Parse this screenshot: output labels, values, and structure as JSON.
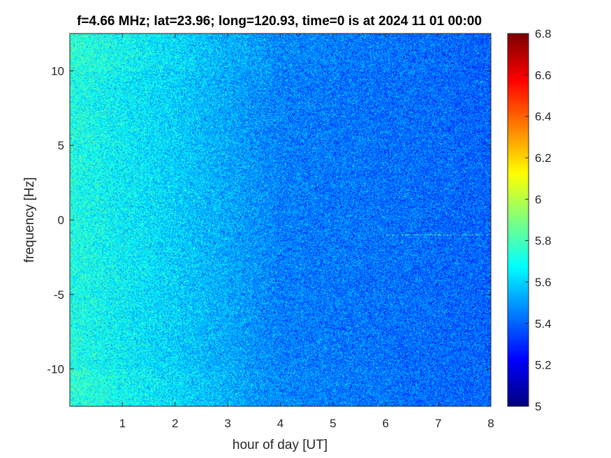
{
  "chart_data": {
    "type": "heatmap",
    "title": "f=4.66 MHz;  lat=23.96; long=120.93, time=0 is at 2024 11 01 00:00",
    "xlabel": "hour of day [UT]",
    "ylabel": "frequency [Hz]",
    "xlim": [
      0,
      8
    ],
    "ylim": [
      -12.5,
      12.5
    ],
    "x_ticks": [
      1,
      2,
      3,
      4,
      5,
      6,
      7,
      8
    ],
    "y_ticks": [
      10,
      5,
      0,
      -5,
      -10
    ],
    "colorbar": {
      "colormap": "jet",
      "clim": [
        5,
        6.8
      ],
      "ticks": [
        "6.8",
        "6.6",
        "6.4",
        "6.2",
        "6",
        "5.8",
        "5.6",
        "5.4",
        "5.2",
        "5"
      ]
    },
    "field_description": {
      "level_at_hour_0": 5.72,
      "level_at_hour_2": 5.6,
      "level_at_hour_4": 5.45,
      "level_at_hour_8": 5.4,
      "noise_spread": 0.2,
      "narrow_line": {
        "frequency_hz": -1,
        "from_hour": 6,
        "to_hour": 8,
        "level": 5.85
      }
    },
    "grid": false
  },
  "colors": {
    "axis": "#262626",
    "background": "#ffffff"
  }
}
